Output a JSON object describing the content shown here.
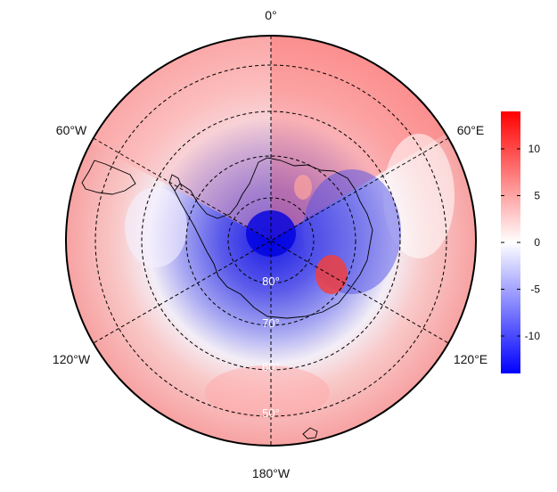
{
  "map": {
    "projection": "south-polar-stereographic",
    "longitude_labels": {
      "top": "0°",
      "upper_left": "60°W",
      "upper_right": "60°E",
      "lower_left": "120°W",
      "lower_right": "120°E",
      "bottom": "180°W"
    },
    "latitude_labels": [
      "80°",
      "70°",
      "60°",
      "50°"
    ]
  },
  "colorbar": {
    "ticks": [
      "10",
      "5",
      "0",
      "-5",
      "-10"
    ],
    "tick_values": [
      10,
      5,
      0,
      -5,
      -10
    ],
    "range": [
      -14,
      14
    ],
    "colors": {
      "low": "#0000ff",
      "mid": "#ffffff",
      "high": "#ff0000"
    }
  }
}
